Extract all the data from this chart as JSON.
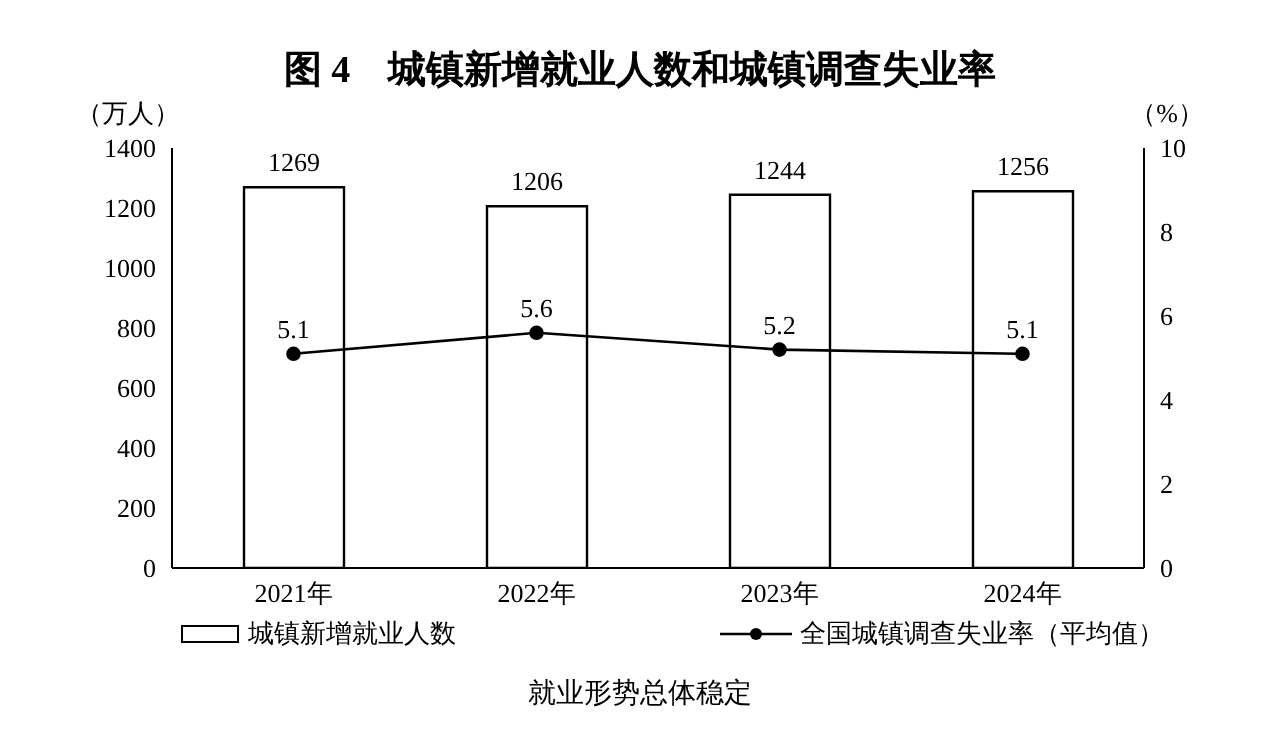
{
  "chart_data": {
    "type": "bar",
    "title": "图 4　城镇新增就业人数和城镇调查失业率",
    "ylabel": "（万人）",
    "y2label": "（%）",
    "categories": [
      "2021年",
      "2022年",
      "2023年",
      "2024年"
    ],
    "series": [
      {
        "name": "城镇新增就业人数",
        "color": "#ffffff",
        "values": [
          1269,
          1206,
          1244,
          1256
        ]
      },
      {
        "name": "全国城镇调查失业率（平均值）",
        "type": "line",
        "axis": "y2",
        "color": "#000000",
        "values": [
          5.1,
          5.6,
          5.2,
          5.1
        ]
      }
    ],
    "ylim": [
      0,
      1400
    ],
    "yticks": [
      0,
      200,
      400,
      600,
      800,
      1000,
      1200,
      1400
    ],
    "y2lim": [
      0,
      10
    ],
    "y2ticks": [
      0,
      2,
      4,
      6,
      8,
      10
    ],
    "data_labels": true,
    "grid": false,
    "legend": "bottom",
    "marker": "circle",
    "line_style": "solid",
    "annotations": [
      "就业形势总体稳定"
    ]
  }
}
